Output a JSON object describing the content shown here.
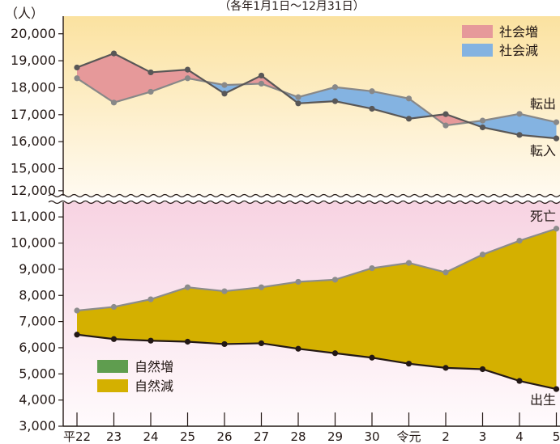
{
  "subtitle": "（各年1月1日～12月31日）",
  "unit_label": "（人）",
  "chart_data": [
    {
      "type": "line",
      "panel": "social",
      "categories": [
        "平22",
        "23",
        "24",
        "25",
        "26",
        "27",
        "28",
        "29",
        "30",
        "令元",
        "2",
        "3",
        "4",
        "5"
      ],
      "ylim": [
        15000,
        20000
      ],
      "yticks": [
        "15,000",
        "16,000",
        "17,000",
        "18,000",
        "19,000",
        "20,000"
      ],
      "series": [
        {
          "name": "転出",
          "color": "#888888",
          "values": [
            18350,
            17450,
            17850,
            18350,
            18100,
            18150,
            17650,
            18020,
            17870,
            17600,
            16600,
            16780,
            17030,
            16720
          ]
        },
        {
          "name": "転入",
          "color": "#595757",
          "values": [
            18750,
            19270,
            18570,
            18670,
            17780,
            18450,
            17420,
            17500,
            17220,
            16850,
            17020,
            16530,
            16250,
            16120
          ]
        }
      ],
      "legend": [
        {
          "label": "社会増",
          "color": "#e6999a"
        },
        {
          "label": "社会減",
          "color": "#84b3e1"
        }
      ],
      "legend_position": "top-right"
    },
    {
      "type": "line",
      "panel": "natural",
      "categories": [
        "平22",
        "23",
        "24",
        "25",
        "26",
        "27",
        "28",
        "29",
        "30",
        "令元",
        "2",
        "3",
        "4",
        "5"
      ],
      "ylim": [
        3000,
        12000
      ],
      "yticks": [
        "3,000",
        "4,000",
        "5,000",
        "6,000",
        "7,000",
        "8,000",
        "9,000",
        "10,000",
        "11,000",
        "12,000"
      ],
      "series": [
        {
          "name": "死亡",
          "color": "#8c8c8c",
          "values": [
            7420,
            7560,
            7850,
            8310,
            8160,
            8310,
            8520,
            8600,
            9040,
            9240,
            8880,
            9560,
            10090,
            10550
          ]
        },
        {
          "name": "出生",
          "color": "#231815",
          "values": [
            6500,
            6330,
            6270,
            6230,
            6140,
            6170,
            5960,
            5790,
            5620,
            5390,
            5230,
            5180,
            4730,
            4420
          ]
        }
      ],
      "legend": [
        {
          "label": "自然増",
          "color": "#5f9d4f"
        },
        {
          "label": "自然減",
          "color": "#d4b000"
        }
      ],
      "legend_position": "bottom-left"
    }
  ]
}
